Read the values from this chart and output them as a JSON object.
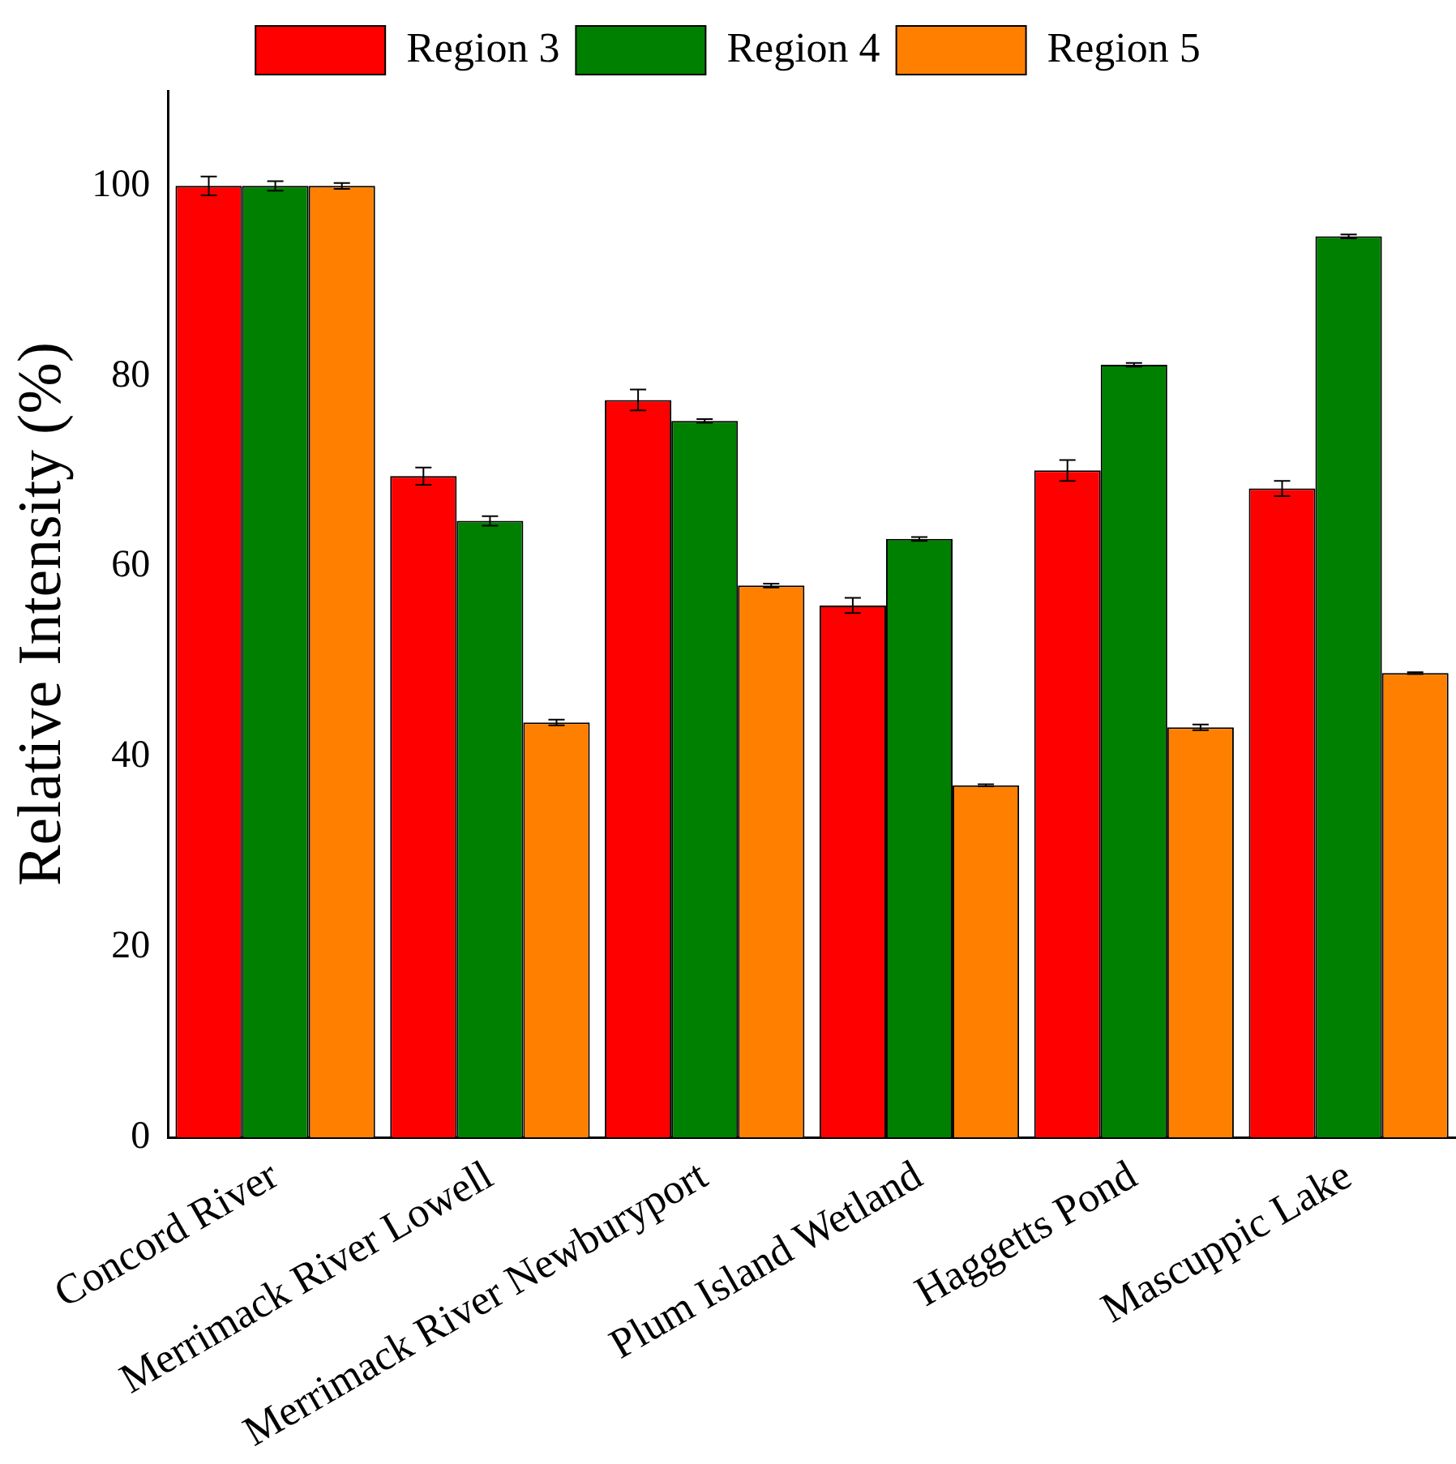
{
  "chart_data": {
    "type": "bar",
    "ylabel": "Relative Intensity (%)",
    "categories": [
      "Concord River",
      "Merrimack River Lowell",
      "Merrimack River Newburyport",
      "Plum Island Wetland",
      "Haggetts Pond",
      "Mascuppic Lake"
    ],
    "series": [
      {
        "name": "Region 3",
        "color": "#ff0000",
        "values": [
          100,
          69.5,
          77.5,
          55.9,
          70.1,
          68.2
        ],
        "errors": [
          1,
          0.9,
          1.1,
          0.8,
          1.1,
          0.8
        ]
      },
      {
        "name": "Region 4",
        "color": "#008000",
        "values": [
          100,
          64.8,
          75.3,
          62.9,
          81.2,
          94.7
        ],
        "errors": [
          0.5,
          0.5,
          0.2,
          0.2,
          0.2,
          0.2
        ]
      },
      {
        "name": "Region 5",
        "color": "#ff8000",
        "values": [
          100,
          43.6,
          58.0,
          37.0,
          43.1,
          48.8
        ],
        "errors": [
          0.3,
          0.3,
          0.2,
          0.1,
          0.3,
          0.1
        ]
      }
    ],
    "ylim": [
      0,
      110
    ],
    "yticks": [
      0,
      20,
      40,
      60,
      80,
      100
    ],
    "grid": false,
    "legend": "top"
  }
}
